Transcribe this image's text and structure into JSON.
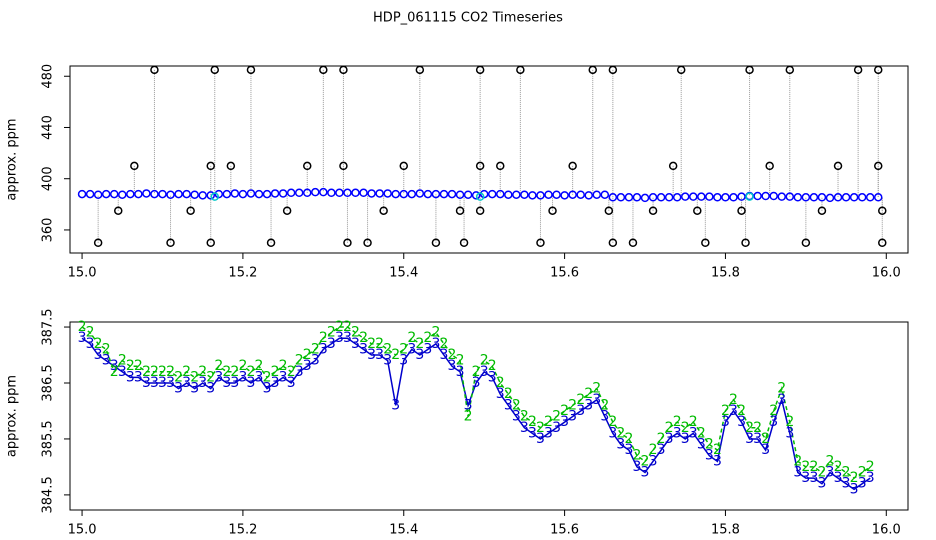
{
  "title": "HDP_061115  CO2 Timeseries",
  "chart_data": [
    {
      "type": "scatter",
      "ylabel": "approx. ppm",
      "xlim": [
        14.985,
        16.027
      ],
      "ylim": [
        342,
        488
      ],
      "xticks": [
        {
          "value": 15,
          "label": "15.0"
        },
        {
          "value": 15.2,
          "label": "15.2"
        },
        {
          "value": 15.4,
          "label": "15.4"
        },
        {
          "value": 15.6,
          "label": "15.6"
        },
        {
          "value": 15.8,
          "label": "15.8"
        },
        {
          "value": 16,
          "label": "16.0"
        }
      ],
      "yticks": [
        360,
        400,
        440,
        480
      ],
      "series": [
        {
          "color": "#0000ff",
          "x": [
            15.0,
            15.01,
            15.02,
            15.03,
            15.04,
            15.05,
            15.06,
            15.07,
            15.08,
            15.09,
            15.1,
            15.11,
            15.12,
            15.13,
            15.14,
            15.15,
            15.16,
            15.17,
            15.18,
            15.19,
            15.2,
            15.21,
            15.22,
            15.23,
            15.24,
            15.25,
            15.26,
            15.27,
            15.28,
            15.29,
            15.3,
            15.31,
            15.32,
            15.33,
            15.34,
            15.35,
            15.36,
            15.37,
            15.38,
            15.39,
            15.4,
            15.41,
            15.42,
            15.43,
            15.44,
            15.45,
            15.46,
            15.47,
            15.48,
            15.49,
            15.5,
            15.51,
            15.52,
            15.53,
            15.54,
            15.55,
            15.56,
            15.57,
            15.58,
            15.59,
            15.6,
            15.61,
            15.62,
            15.63,
            15.64,
            15.65,
            15.66,
            15.67,
            15.68,
            15.69,
            15.7,
            15.71,
            15.72,
            15.73,
            15.74,
            15.75,
            15.76,
            15.77,
            15.78,
            15.79,
            15.8,
            15.81,
            15.82,
            15.83,
            15.84,
            15.85,
            15.86,
            15.87,
            15.88,
            15.89,
            15.9,
            15.91,
            15.92,
            15.93,
            15.94,
            15.95,
            15.96,
            15.97,
            15.98,
            15.99
          ],
          "values": [
            388,
            388,
            387.5,
            388,
            388,
            387.5,
            388,
            388,
            388.5,
            388,
            388,
            387.5,
            388,
            388,
            387.5,
            387,
            387,
            388,
            388,
            388.5,
            388,
            388.5,
            388,
            388,
            388.5,
            388.5,
            389,
            389,
            389,
            389.5,
            389.5,
            389,
            389,
            389,
            389,
            389,
            388.5,
            388.5,
            388.5,
            388,
            388,
            388,
            388.5,
            388,
            388,
            388,
            388,
            387.5,
            387.5,
            387,
            388,
            388,
            388,
            387.5,
            387.5,
            387.5,
            387,
            387,
            387.5,
            387.5,
            387,
            387.5,
            387.5,
            387,
            387.5,
            387.5,
            385.5,
            385.5,
            385.5,
            385.5,
            385,
            385.5,
            385.5,
            385.5,
            385.5,
            386,
            386,
            386,
            386,
            385.5,
            385.5,
            385.5,
            386,
            386.5,
            386.5,
            386.5,
            386.5,
            386,
            386,
            385.5,
            385.5,
            385.5,
            385.5,
            385,
            385.5,
            385.5,
            385.5,
            385.5,
            385.5,
            385.5
          ]
        },
        {
          "color": "#000000",
          "x": [
            15.09,
            15.165,
            15.21,
            15.3,
            15.325,
            15.42,
            15.495,
            15.545,
            15.635,
            15.66,
            15.745,
            15.83,
            15.88,
            15.965,
            15.99,
            15.065,
            15.16,
            15.185,
            15.28,
            15.325,
            15.4,
            15.495,
            15.52,
            15.61,
            15.735,
            15.855,
            15.94,
            15.99,
            15.045,
            15.135,
            15.255,
            15.375,
            15.47,
            15.495,
            15.585,
            15.655,
            15.71,
            15.765,
            15.82,
            15.92,
            15.995,
            15.02,
            15.11,
            15.16,
            15.235,
            15.33,
            15.355,
            15.44,
            15.475,
            15.57,
            15.66,
            15.685,
            15.775,
            15.825,
            15.9,
            15.995
          ],
          "values": [
            485,
            485,
            485,
            485,
            485,
            485,
            485,
            485,
            485,
            485,
            485,
            485,
            485,
            485,
            485,
            410,
            410,
            410,
            410,
            410,
            410,
            410,
            410,
            410,
            410,
            410,
            410,
            410,
            375,
            375,
            375,
            375,
            375,
            375,
            375,
            375,
            375,
            375,
            375,
            375,
            375,
            350,
            350,
            350,
            350,
            350,
            350,
            350,
            350,
            350,
            350,
            350,
            350,
            350,
            350,
            350
          ]
        },
        {
          "color": "#00c8c8",
          "x": [
            15.165,
            15.495,
            15.83
          ],
          "values": [
            386,
            386,
            386
          ]
        }
      ]
    },
    {
      "type": "scatter",
      "ylabel": "approx. ppm",
      "xlim": [
        14.985,
        16.027
      ],
      "ylim": [
        384.23,
        387.59
      ],
      "xticks": [
        {
          "value": 15,
          "label": "15.0"
        },
        {
          "value": 15.2,
          "label": "15.2"
        },
        {
          "value": 15.4,
          "label": "15.4"
        },
        {
          "value": 15.6,
          "label": "15.6"
        },
        {
          "value": 15.8,
          "label": "15.8"
        },
        {
          "value": 16,
          "label": "16.0"
        }
      ],
      "yticks": [
        384.5,
        385.5,
        386.5,
        387.5
      ],
      "x": [
        15.0,
        15.01,
        15.02,
        15.03,
        15.04,
        15.05,
        15.06,
        15.07,
        15.08,
        15.09,
        15.1,
        15.11,
        15.12,
        15.13,
        15.14,
        15.15,
        15.16,
        15.17,
        15.18,
        15.19,
        15.2,
        15.21,
        15.22,
        15.23,
        15.24,
        15.25,
        15.26,
        15.27,
        15.28,
        15.29,
        15.3,
        15.31,
        15.32,
        15.33,
        15.34,
        15.35,
        15.36,
        15.37,
        15.38,
        15.39,
        15.4,
        15.41,
        15.42,
        15.43,
        15.44,
        15.45,
        15.46,
        15.47,
        15.48,
        15.49,
        15.5,
        15.51,
        15.52,
        15.53,
        15.54,
        15.55,
        15.56,
        15.57,
        15.58,
        15.59,
        15.6,
        15.61,
        15.62,
        15.63,
        15.64,
        15.65,
        15.66,
        15.67,
        15.68,
        15.69,
        15.7,
        15.71,
        15.72,
        15.73,
        15.74,
        15.75,
        15.76,
        15.77,
        15.78,
        15.79,
        15.8,
        15.81,
        15.82,
        15.83,
        15.84,
        15.85,
        15.86,
        15.87,
        15.88,
        15.89,
        15.9,
        15.91,
        15.92,
        15.93,
        15.94,
        15.95,
        15.96,
        15.97,
        15.98
      ],
      "series": [
        {
          "marker": "3",
          "color": "#0000cc",
          "dash": false,
          "values": [
            387.3,
            387.2,
            387.0,
            386.9,
            386.8,
            386.7,
            386.6,
            386.6,
            386.5,
            386.5,
            386.5,
            386.5,
            386.4,
            386.5,
            386.4,
            386.5,
            386.4,
            386.6,
            386.5,
            386.5,
            386.6,
            386.5,
            386.6,
            386.4,
            386.5,
            386.6,
            386.5,
            386.7,
            386.8,
            386.9,
            387.1,
            387.2,
            387.3,
            387.3,
            387.2,
            387.1,
            387.0,
            387.0,
            386.9,
            386.1,
            386.9,
            387.1,
            387.0,
            387.1,
            387.2,
            387.0,
            386.8,
            386.7,
            386.1,
            386.5,
            386.7,
            386.6,
            386.3,
            386.1,
            385.9,
            385.7,
            385.6,
            385.5,
            385.6,
            385.7,
            385.8,
            385.9,
            386.0,
            386.1,
            386.2,
            385.9,
            385.6,
            385.4,
            385.3,
            385.0,
            384.9,
            385.1,
            385.3,
            385.5,
            385.6,
            385.5,
            385.6,
            385.4,
            385.2,
            385.1,
            385.8,
            386.0,
            385.8,
            385.5,
            385.5,
            385.3,
            385.8,
            386.2,
            385.6,
            384.9,
            384.8,
            384.8,
            384.7,
            384.9,
            384.8,
            384.7,
            384.6,
            384.7,
            384.8
          ]
        },
        {
          "marker": "2",
          "color": "#00bb00",
          "dash": true,
          "values": [
            387.5,
            387.4,
            387.2,
            387.1,
            386.7,
            386.9,
            386.8,
            386.8,
            386.7,
            386.7,
            386.7,
            386.7,
            386.6,
            386.7,
            386.6,
            386.7,
            386.6,
            386.8,
            386.7,
            386.7,
            386.8,
            386.7,
            386.8,
            386.6,
            386.7,
            386.8,
            386.7,
            386.9,
            387.0,
            387.1,
            387.3,
            387.4,
            387.5,
            387.5,
            387.4,
            387.3,
            387.2,
            387.2,
            387.1,
            387.0,
            387.1,
            387.3,
            387.2,
            387.3,
            387.4,
            387.2,
            387.0,
            386.9,
            385.9,
            386.7,
            386.9,
            386.8,
            386.5,
            386.3,
            386.1,
            385.9,
            385.8,
            385.7,
            385.8,
            385.9,
            386.0,
            386.1,
            386.2,
            386.3,
            386.4,
            386.1,
            385.8,
            385.6,
            385.5,
            385.2,
            385.1,
            385.3,
            385.5,
            385.7,
            385.8,
            385.7,
            385.8,
            385.6,
            385.4,
            385.3,
            386.0,
            386.2,
            386.0,
            385.7,
            385.7,
            385.5,
            386.0,
            386.4,
            385.8,
            385.1,
            385.0,
            385.0,
            384.9,
            385.1,
            385.0,
            384.9,
            384.8,
            384.9,
            385.0
          ]
        }
      ]
    }
  ]
}
